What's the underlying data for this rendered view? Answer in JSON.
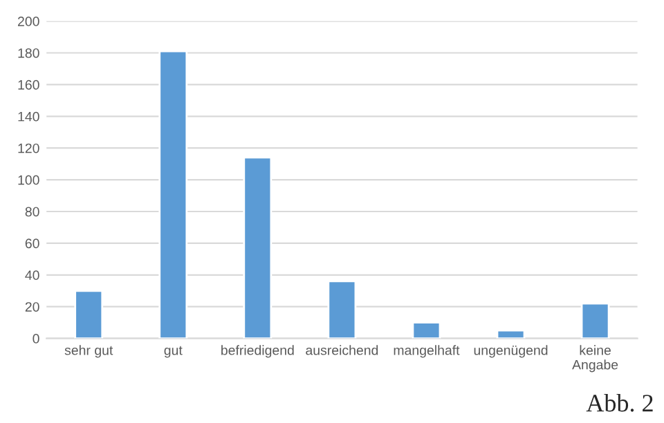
{
  "chart_data": {
    "type": "bar",
    "categories": [
      "sehr gut",
      "gut",
      "befriedigend",
      "ausreichend",
      "mangelhaft",
      "ungenügend",
      "keine Angabe"
    ],
    "values": [
      30,
      181,
      114,
      36,
      10,
      5,
      22
    ],
    "color": "#5b9bd5",
    "ylim": [
      0,
      200
    ],
    "yticks": [
      0,
      20,
      40,
      60,
      80,
      100,
      120,
      140,
      160,
      180,
      200
    ],
    "grid": "y",
    "annotations": [
      "Abb. 2"
    ]
  }
}
